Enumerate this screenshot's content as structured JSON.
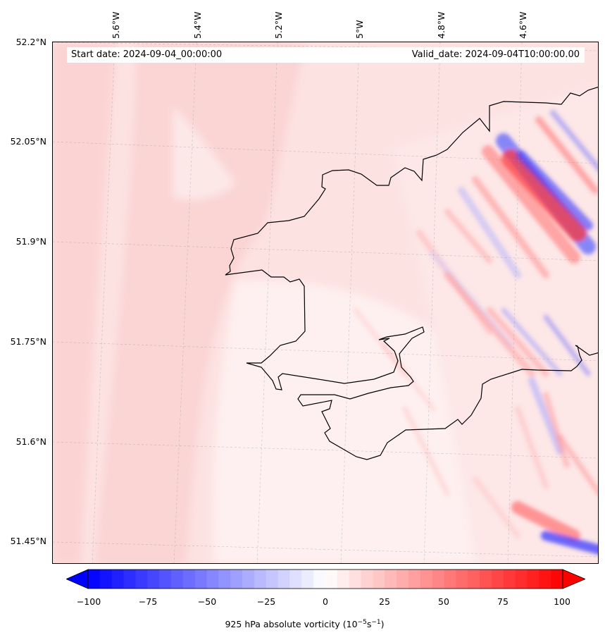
{
  "map": {
    "start_date": "Start date: 2024-09-04_00:00:00",
    "valid_date": "Valid_date: 2024-09-04T10:00:00.00",
    "lat_labels": [
      "52.2°N",
      "52.05°N",
      "51.9°N",
      "51.75°N",
      "51.6°N",
      "51.45°N"
    ],
    "lon_labels": [
      "5.6°W",
      "5.4°W",
      "5.2°W",
      "5°W",
      "4.8°W",
      "4.6°W"
    ],
    "gridlines": true
  },
  "colorbar": {
    "ticks": [
      "−100",
      "−75",
      "−50",
      "−25",
      "0",
      "25",
      "50",
      "75",
      "100"
    ],
    "label_text": "925 hPa absolute vorticity (10",
    "label_exp1": "−5",
    "label_mid": "s",
    "label_exp2": "−1",
    "label_end": ")",
    "range": [
      -100,
      100
    ],
    "colormap": "bwr",
    "extend": "both"
  },
  "colors": {
    "negative": "#0000ff",
    "positive": "#ff0000",
    "background_field": "#fde0e0",
    "coastline": "#000000"
  }
}
